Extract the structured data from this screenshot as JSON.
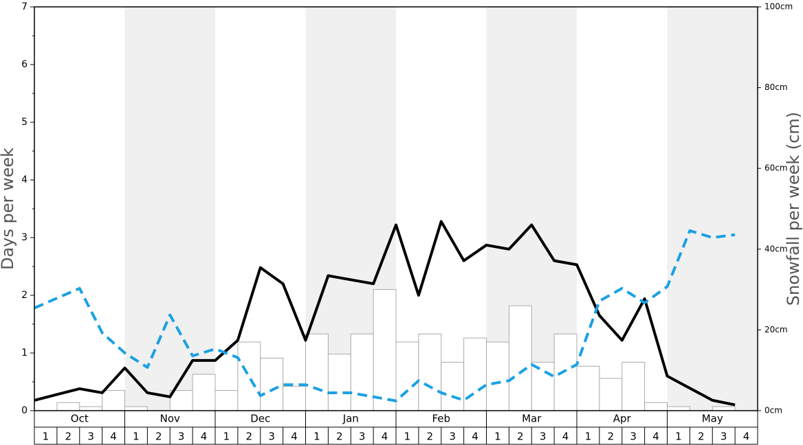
{
  "chart_data": {
    "type": "combo",
    "ylabel": "Days per week",
    "y2label": "Snowfall per week (cm)",
    "months": [
      "Oct",
      "Nov",
      "Dec",
      "Jan",
      "Feb",
      "Mar",
      "Apr",
      "May"
    ],
    "categories": [
      "1",
      "2",
      "3",
      "4",
      "1",
      "2",
      "3",
      "4",
      "1",
      "2",
      "3",
      "4",
      "1",
      "2",
      "3",
      "4",
      "1",
      "2",
      "3",
      "4",
      "1",
      "2",
      "3",
      "4",
      "1",
      "2",
      "3",
      "4",
      "1",
      "2",
      "3",
      "4"
    ],
    "ylim": [
      0,
      7
    ],
    "yticks": [
      0,
      1,
      2,
      3,
      4,
      5,
      6,
      7
    ],
    "y2lim": [
      0,
      100
    ],
    "y2ticks": [
      {
        "value": 0,
        "label": "0cm"
      },
      {
        "value": 20,
        "label": "20cm"
      },
      {
        "value": 40,
        "label": "40cm"
      },
      {
        "value": 60,
        "label": "60cm"
      },
      {
        "value": 80,
        "label": "80cm"
      },
      {
        "value": 100,
        "label": "100cm"
      }
    ],
    "series": [
      {
        "kind": "bar",
        "axis": "y2",
        "color": "#ffffff",
        "values": [
          0,
          2,
          1,
          5,
          1,
          0,
          5,
          9,
          5,
          17,
          13,
          6,
          19,
          14,
          19,
          30,
          17,
          19,
          12,
          18,
          17,
          26,
          12,
          19,
          11,
          8,
          12,
          2,
          1,
          0,
          1,
          0
        ]
      },
      {
        "kind": "line",
        "color": "#000000",
        "dash": false,
        "values": [
          0.18,
          0.28,
          0.38,
          0.31,
          0.74,
          0.31,
          0.24,
          0.87,
          0.87,
          1.22,
          2.48,
          2.2,
          1.22,
          2.34,
          2.27,
          2.2,
          3.22,
          2.0,
          3.28,
          2.6,
          2.87,
          2.8,
          3.22,
          2.6,
          2.53,
          1.65,
          1.22,
          1.94,
          0.6,
          0.39,
          0.18,
          0.1
        ]
      },
      {
        "kind": "line",
        "color": "#1ba1e2",
        "dash": true,
        "values": [
          1.78,
          1.95,
          2.12,
          1.35,
          1.0,
          0.75,
          1.66,
          0.95,
          1.07,
          0.92,
          0.26,
          0.45,
          0.45,
          0.31,
          0.31,
          0.24,
          0.17,
          0.52,
          0.31,
          0.18,
          0.45,
          0.52,
          0.8,
          0.59,
          0.8,
          1.9,
          2.12,
          1.87,
          2.15,
          3.12,
          3.0,
          3.05
        ]
      }
    ]
  }
}
